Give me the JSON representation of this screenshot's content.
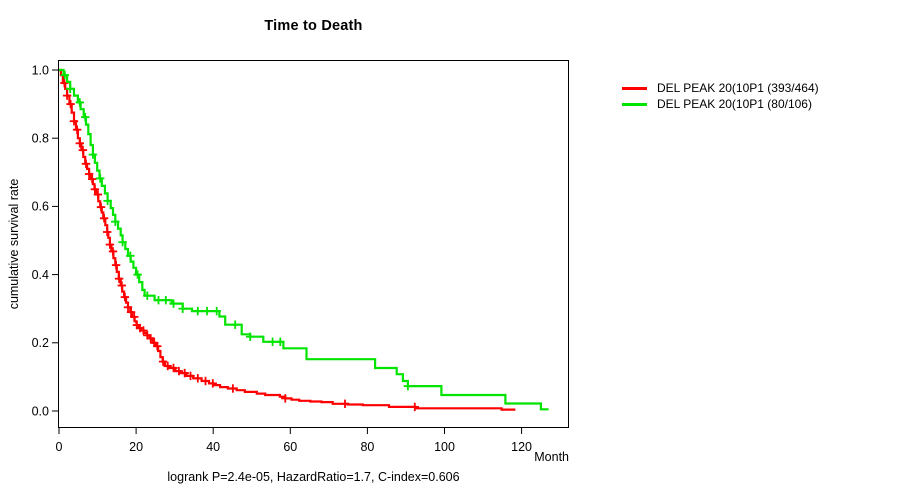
{
  "chart_data": {
    "type": "line",
    "subtype": "kaplan-meier-step",
    "title": "Time to Death",
    "xlabel": "Month",
    "ylabel": "cumulative survival rate",
    "annotation": "logrank P=2.4e-05, HazardRatio=1.7, C-index=0.606",
    "xlim": [
      0,
      132
    ],
    "ylim": [
      0,
      1.04
    ],
    "grid": false,
    "legend_position": "outside-top-right",
    "x_ticks": {
      "values": [
        0,
        20,
        40,
        60,
        80,
        100,
        120
      ],
      "labels": [
        "0",
        "20",
        "40",
        "60",
        "80",
        "100",
        "120"
      ]
    },
    "y_ticks": {
      "values": [
        0,
        0.2,
        0.4,
        0.6,
        0.8,
        1.0
      ],
      "labels": [
        "0.0",
        "0.2",
        "0.4",
        "0.6",
        "0.8",
        "1.0"
      ]
    },
    "series": [
      {
        "name": "DEL PEAK 20(10P1 (393/464)",
        "color": "#ff0000",
        "end_month": 118.4,
        "steps": [
          [
            0,
            1.0
          ],
          [
            0.5,
            0.985
          ],
          [
            1,
            0.962
          ],
          [
            1.6,
            0.945
          ],
          [
            2.1,
            0.925
          ],
          [
            2.7,
            0.9
          ],
          [
            3.3,
            0.875
          ],
          [
            3.9,
            0.85
          ],
          [
            4.4,
            0.825
          ],
          [
            4.9,
            0.8
          ],
          [
            5.4,
            0.785
          ],
          [
            5.8,
            0.765
          ],
          [
            6.3,
            0.745
          ],
          [
            6.8,
            0.725
          ],
          [
            7.3,
            0.71
          ],
          [
            7.8,
            0.695
          ],
          [
            8.3,
            0.68
          ],
          [
            8.8,
            0.665
          ],
          [
            9.2,
            0.65
          ],
          [
            9.7,
            0.635
          ],
          [
            10.2,
            0.615
          ],
          [
            10.7,
            0.598
          ],
          [
            11.1,
            0.582
          ],
          [
            11.5,
            0.565
          ],
          [
            12.0,
            0.545
          ],
          [
            12.5,
            0.525
          ],
          [
            12.8,
            0.508
          ],
          [
            13.2,
            0.488
          ],
          [
            13.6,
            0.468
          ],
          [
            14.1,
            0.448
          ],
          [
            14.6,
            0.428
          ],
          [
            15.0,
            0.408
          ],
          [
            15.5,
            0.388
          ],
          [
            16.0,
            0.368
          ],
          [
            16.4,
            0.35
          ],
          [
            16.9,
            0.334
          ],
          [
            17.4,
            0.318
          ],
          [
            17.9,
            0.304
          ],
          [
            18.5,
            0.29
          ],
          [
            19.0,
            0.276
          ],
          [
            19.6,
            0.263
          ],
          [
            20.1,
            0.252
          ],
          [
            20.7,
            0.243
          ],
          [
            21.3,
            0.236
          ],
          [
            22.0,
            0.229
          ],
          [
            22.8,
            0.222
          ],
          [
            23.5,
            0.213
          ],
          [
            24.3,
            0.2
          ],
          [
            25.1,
            0.19
          ],
          [
            25.7,
            0.176
          ],
          [
            26.3,
            0.158
          ],
          [
            26.9,
            0.145
          ],
          [
            27.5,
            0.132
          ],
          [
            28.7,
            0.126
          ],
          [
            30.2,
            0.117
          ],
          [
            31.4,
            0.111
          ],
          [
            33.1,
            0.103
          ],
          [
            34.8,
            0.096
          ],
          [
            37.0,
            0.088
          ],
          [
            38.9,
            0.081
          ],
          [
            40.1,
            0.076
          ],
          [
            41.8,
            0.07
          ],
          [
            43.8,
            0.066
          ],
          [
            46.1,
            0.061
          ],
          [
            48.2,
            0.056
          ],
          [
            51.3,
            0.051
          ],
          [
            53.5,
            0.047
          ],
          [
            57.3,
            0.042
          ],
          [
            58.7,
            0.037
          ],
          [
            60.3,
            0.033
          ],
          [
            62.3,
            0.03
          ],
          [
            65.2,
            0.028
          ],
          [
            68.1,
            0.026
          ],
          [
            71.0,
            0.021
          ],
          [
            74.9,
            0.019
          ],
          [
            78.8,
            0.017
          ],
          [
            85.6,
            0.012
          ],
          [
            92.4,
            0.008
          ],
          [
            114.8,
            0.004
          ]
        ],
        "censor_months": [
          1.4,
          2.1,
          3.0,
          3.9,
          4.7,
          5.4,
          6.2,
          7.0,
          7.8,
          8.6,
          9.3,
          10.1,
          10.9,
          11.7,
          12.5,
          13.2,
          14.0,
          14.8,
          15.6,
          16.3,
          17.1,
          17.9,
          18.7,
          19.5,
          20.2,
          21.0,
          21.9,
          22.9,
          23.8,
          24.7,
          25.5,
          27.0,
          28.2,
          29.7,
          31.1,
          32.6,
          34.1,
          36.0,
          38.0,
          39.9,
          45.1,
          58.7,
          74.2,
          92.3
        ]
      },
      {
        "name": "DEL PEAK 20(10P1 (80/106)",
        "color": "#00e400",
        "end_month": 127.0,
        "steps": [
          [
            0,
            1.0
          ],
          [
            1.2,
            0.985
          ],
          [
            2.1,
            0.965
          ],
          [
            2.9,
            0.945
          ],
          [
            3.9,
            0.925
          ],
          [
            4.9,
            0.905
          ],
          [
            5.6,
            0.885
          ],
          [
            6.4,
            0.862
          ],
          [
            7.0,
            0.84
          ],
          [
            7.6,
            0.812
          ],
          [
            8.2,
            0.78
          ],
          [
            8.8,
            0.752
          ],
          [
            9.3,
            0.728
          ],
          [
            9.9,
            0.705
          ],
          [
            10.5,
            0.682
          ],
          [
            11.1,
            0.66
          ],
          [
            11.9,
            0.638
          ],
          [
            12.6,
            0.616
          ],
          [
            13.4,
            0.595
          ],
          [
            14.0,
            0.575
          ],
          [
            14.6,
            0.555
          ],
          [
            15.3,
            0.535
          ],
          [
            16.0,
            0.515
          ],
          [
            16.5,
            0.495
          ],
          [
            17.2,
            0.475
          ],
          [
            17.9,
            0.455
          ],
          [
            18.6,
            0.438
          ],
          [
            19.3,
            0.42
          ],
          [
            20.0,
            0.4
          ],
          [
            20.8,
            0.378
          ],
          [
            21.6,
            0.355
          ],
          [
            22.2,
            0.338
          ],
          [
            24.8,
            0.325
          ],
          [
            29.2,
            0.315
          ],
          [
            32.1,
            0.3
          ],
          [
            34.5,
            0.293
          ],
          [
            41.6,
            0.277
          ],
          [
            43.1,
            0.253
          ],
          [
            47.4,
            0.225
          ],
          [
            49.6,
            0.218
          ],
          [
            53.0,
            0.203
          ],
          [
            58.2,
            0.184
          ],
          [
            64.2,
            0.152
          ],
          [
            82.0,
            0.126
          ],
          [
            87.6,
            0.108
          ],
          [
            89.2,
            0.088
          ],
          [
            90.5,
            0.073
          ],
          [
            99.2,
            0.047
          ],
          [
            115.8,
            0.022
          ],
          [
            125.0,
            0.005
          ]
        ],
        "censor_months": [
          1.5,
          2.9,
          5.4,
          6.8,
          8.8,
          10.7,
          12.6,
          14.6,
          16.5,
          18.5,
          20.4,
          22.9,
          25.8,
          27.7,
          29.7,
          32.1,
          36.0,
          38.4,
          40.9,
          45.7,
          49.6,
          55.4,
          57.4,
          90.5
        ]
      }
    ]
  }
}
